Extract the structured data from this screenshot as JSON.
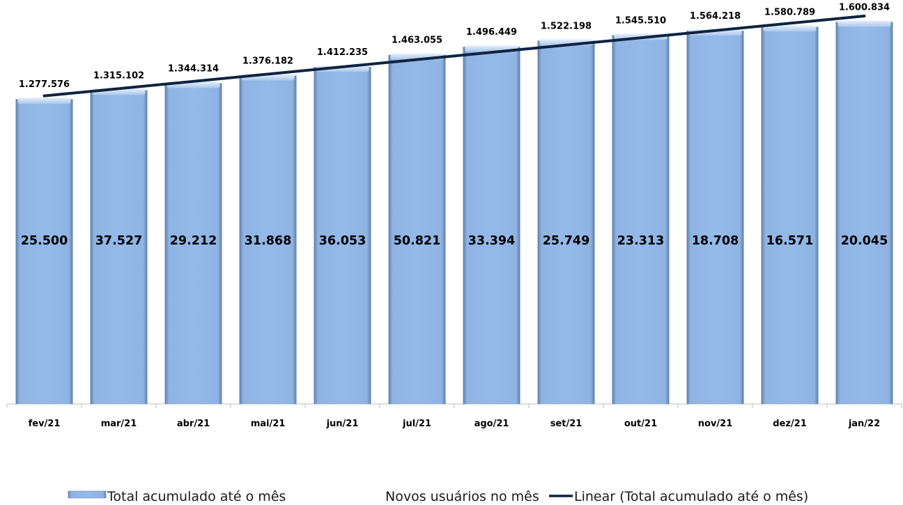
{
  "chart_data": {
    "type": "bar",
    "categories": [
      "fev/21",
      "mar/21",
      "abr/21",
      "mai/21",
      "jun/21",
      "jul/21",
      "ago/21",
      "set/21",
      "out/21",
      "nov/21",
      "dez/21",
      "jan/22"
    ],
    "series": [
      {
        "name": "Total acumulado até o mês",
        "values": [
          1277576,
          1315102,
          1344314,
          1376182,
          1412235,
          1463055,
          1496449,
          1522198,
          1545510,
          1564218,
          1580789,
          1600834
        ],
        "labels": [
          "1.277.576",
          "1.315.102",
          "1.344.314",
          "1.376.182",
          "1.412.235",
          "1.463.055",
          "1.496.449",
          "1.522.198",
          "1.545.510",
          "1.564.218",
          "1.580.789",
          "1.600.834"
        ],
        "color": "#8db4e3"
      },
      {
        "name": "Novos usuários no mês",
        "values": [
          25500,
          37527,
          29212,
          31868,
          36053,
          50821,
          33394,
          25749,
          23313,
          18708,
          16571,
          20045
        ],
        "labels": [
          "25.500",
          "37.527",
          "29.212",
          "31.868",
          "36.053",
          "50.821",
          "33.394",
          "25.749",
          "23.313",
          "18.708",
          "16.571",
          "20.045"
        ]
      }
    ],
    "trendline": {
      "name": "Linear (Total acumulado até o mês)",
      "type": "linear",
      "color": "#0f2340"
    },
    "ylim": [
      0,
      1650000
    ],
    "grid": false,
    "legend_position": "bottom",
    "title": "",
    "xlabel": "",
    "ylabel": ""
  }
}
